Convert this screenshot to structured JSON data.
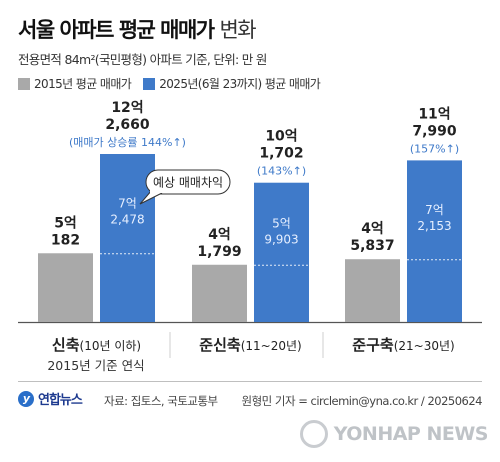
{
  "header": {
    "title": "서울 아파트 평균 매매가",
    "title_light": "변화",
    "subtitle": "전용면적 84m²(국민평형) 아파트 기준, 단위: 만 원"
  },
  "legend": {
    "item_2015": "2015년 평균 매매가",
    "item_2025": "2025년(6월 23까지) 평균 매매가"
  },
  "colors": {
    "gray": "#a9a9a9",
    "blue": "#3f7ac9",
    "accent": "#3f7ac9"
  },
  "chart_data": {
    "type": "bar",
    "categories": [
      "신축",
      "준신축",
      "준구축"
    ],
    "category_sublabels": [
      "(10년 이하)",
      "(11~20년)",
      "(21~30년)"
    ],
    "category_note": "2015년 기준 연식",
    "series": [
      {
        "name": "2015년 평균 매매가",
        "values": [
          50182,
          41799,
          45837
        ],
        "labels_eok": [
          "5억",
          "4억",
          "4억"
        ],
        "labels_man": [
          "182",
          "1,799",
          "5,837"
        ]
      },
      {
        "name": "2025년(6월 23까지) 평균 매매가",
        "values": [
          122660,
          101702,
          117990
        ],
        "labels_eok": [
          "12억",
          "10억",
          "11억"
        ],
        "labels_man": [
          "2,660",
          "1,702",
          "7,990"
        ]
      }
    ],
    "growth_labels": [
      "(매매가 상승률 144%↑)",
      "(143%↑)",
      "(157%↑)"
    ],
    "diff_labels_eok": [
      "7억",
      "5억",
      "7억"
    ],
    "diff_labels_man": [
      "2,478",
      "9,903",
      "2,153"
    ],
    "callout": "예상 매매차익",
    "ylim": [
      0,
      130000
    ]
  },
  "footer": {
    "brand": "연합뉴스",
    "source": "자료: 집토스, 국토교통부",
    "credit": "원형민 기자 = circlemin@yna.co.kr / 20250624",
    "watermark": "YONHAP NEWS"
  }
}
